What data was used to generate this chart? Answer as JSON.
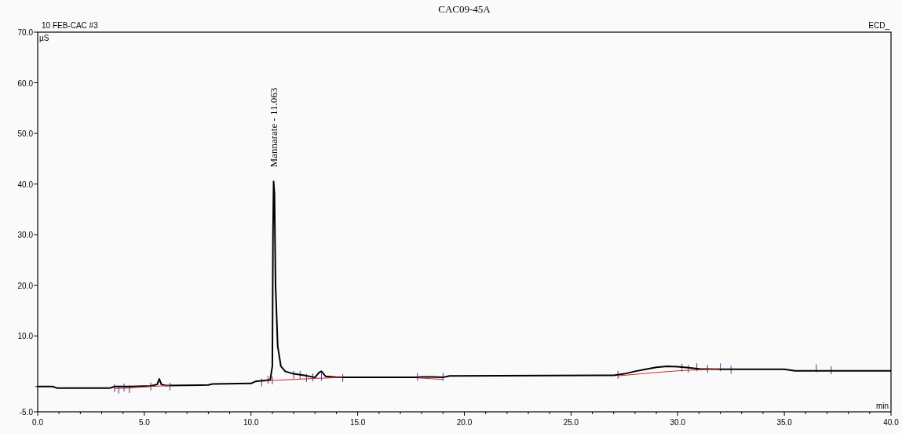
{
  "chart_data": {
    "type": "line",
    "title": "CAC09-45A",
    "xlabel": "min",
    "ylabel": "µS",
    "annotations": [
      "10 FEB-CAC #3",
      "ECD_",
      {
        "text": "Mannarate - 11.063",
        "x": 11.063,
        "y": 40.5
      }
    ],
    "xlim": [
      0,
      40
    ],
    "ylim": [
      -5,
      70
    ],
    "xticks": [
      {
        "value": 0,
        "label": "0.0"
      },
      {
        "value": 1,
        "label": null
      },
      {
        "value": 2,
        "label": null
      },
      {
        "value": 3,
        "label": null
      },
      {
        "value": 4,
        "label": null
      },
      {
        "value": 5,
        "label": "5.0"
      },
      {
        "value": 6,
        "label": null
      },
      {
        "value": 7,
        "label": null
      },
      {
        "value": 8,
        "label": null
      },
      {
        "value": 9,
        "label": null
      },
      {
        "value": 10,
        "label": "10.0"
      },
      {
        "value": 11,
        "label": null
      },
      {
        "value": 12,
        "label": null
      },
      {
        "value": 13,
        "label": null
      },
      {
        "value": 14,
        "label": null
      },
      {
        "value": 15,
        "label": "15.0"
      },
      {
        "value": 16,
        "label": null
      },
      {
        "value": 17,
        "label": null
      },
      {
        "value": 18,
        "label": null
      },
      {
        "value": 19,
        "label": null
      },
      {
        "value": 20,
        "label": "20.0"
      },
      {
        "value": 21,
        "label": null
      },
      {
        "value": 22,
        "label": null
      },
      {
        "value": 23,
        "label": null
      },
      {
        "value": 24,
        "label": null
      },
      {
        "value": 25,
        "label": "25.0"
      },
      {
        "value": 26,
        "label": null
      },
      {
        "value": 27,
        "label": null
      },
      {
        "value": 28,
        "label": null
      },
      {
        "value": 29,
        "label": null
      },
      {
        "value": 30,
        "label": "30.0"
      },
      {
        "value": 31,
        "label": null
      },
      {
        "value": 32,
        "label": null
      },
      {
        "value": 33,
        "label": null
      },
      {
        "value": 34,
        "label": null
      },
      {
        "value": 35,
        "label": "35.0"
      },
      {
        "value": 36,
        "label": null
      },
      {
        "value": 37,
        "label": null
      },
      {
        "value": 38,
        "label": null
      },
      {
        "value": 39,
        "label": null
      },
      {
        "value": 40,
        "label": "40.0"
      }
    ],
    "yticks": [
      {
        "value": -5,
        "label": "-5.0"
      },
      {
        "value": 0,
        "label": null
      },
      {
        "value": 10,
        "label": "10.0"
      },
      {
        "value": 20,
        "label": "20.0"
      },
      {
        "value": 30,
        "label": "30.0"
      },
      {
        "value": 40,
        "label": "40.0"
      },
      {
        "value": 50,
        "label": "50.0"
      },
      {
        "value": 60,
        "label": "60.0"
      },
      {
        "value": 70,
        "label": "70.0"
      }
    ],
    "grid": false,
    "series": [
      {
        "color": "#000000",
        "x": [
          0,
          0.7,
          0.9,
          3.4,
          3.6,
          4.3,
          5.3,
          5.6,
          5.7,
          5.8,
          6.0,
          8.0,
          8.2,
          10.0,
          10.2,
          10.9,
          11.0,
          11.03,
          11.06,
          11.1,
          11.15,
          11.25,
          11.4,
          11.6,
          12.0,
          12.5,
          13.0,
          13.2,
          13.3,
          13.5,
          14.0,
          17.8,
          18.0,
          18.5,
          19.0,
          19.3,
          27.0,
          27.5,
          28.0,
          28.5,
          29.0,
          29.5,
          30.0,
          30.5,
          31.0,
          32.0,
          35.0,
          35.5,
          40.0
        ],
        "values": [
          0,
          0,
          -0.3,
          -0.3,
          0,
          0,
          0.1,
          0.4,
          1.5,
          0.4,
          0.2,
          0.3,
          0.5,
          0.6,
          1.0,
          1.3,
          4,
          30,
          40.5,
          38,
          20,
          8,
          4,
          3,
          2.5,
          2.2,
          1.8,
          2.8,
          3,
          2.0,
          1.8,
          1.8,
          1.9,
          1.9,
          1.8,
          2.1,
          2.2,
          2.5,
          3.0,
          3.4,
          3.8,
          4.0,
          3.9,
          3.7,
          3.5,
          3.4,
          3.4,
          3.1,
          3.1
        ]
      },
      {
        "color": "#d62728",
        "x": [
          3.6,
          4.3,
          5.3,
          6.2,
          6.21,
          10.5,
          11.0,
          12.0,
          13.0,
          14.3,
          14.31,
          17.8,
          19.0,
          19.01,
          27.2,
          28.5,
          30.0,
          31.0,
          32.0
        ],
        "values": [
          -0.4,
          -0.3,
          0,
          0.2,
          null,
          1.0,
          1.2,
          1.4,
          1.6,
          1.8,
          null,
          1.7,
          1.4,
          null,
          2.1,
          2.6,
          3.1,
          3.3,
          3.5
        ]
      }
    ]
  }
}
